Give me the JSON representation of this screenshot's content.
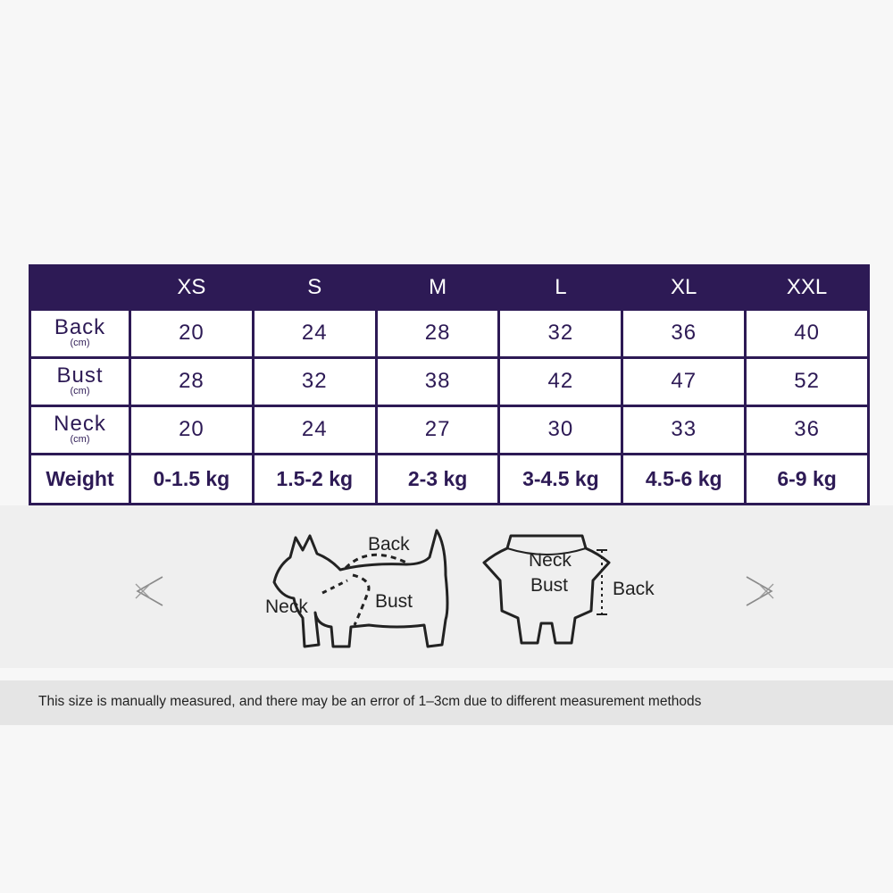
{
  "size_table": {
    "columns": [
      "XS",
      "S",
      "M",
      "L",
      "XL",
      "XXL"
    ],
    "rows": [
      {
        "label": "Back",
        "unit": "(cm)",
        "values": [
          "20",
          "24",
          "28",
          "32",
          "36",
          "40"
        ]
      },
      {
        "label": "Bust",
        "unit": "(cm)",
        "values": [
          "28",
          "32",
          "38",
          "42",
          "47",
          "52"
        ]
      },
      {
        "label": "Neck",
        "unit": "(cm)",
        "values": [
          "20",
          "24",
          "27",
          "30",
          "33",
          "36"
        ]
      },
      {
        "label": "Weight",
        "unit": "",
        "values": [
          "0-1.5 kg",
          "1.5-2 kg",
          "2-3 kg",
          "3-4.5 kg",
          "4.5-6 kg",
          "6-9 kg"
        ]
      }
    ]
  },
  "diagram": {
    "dog_labels": {
      "back": "Back",
      "neck": "Neck",
      "bust": "Bust"
    },
    "coat_labels": {
      "neck": "Neck",
      "bust": "Bust",
      "back": "Back"
    }
  },
  "note": "This size is manually measured, and there may be an error of 1–3cm due to different measurement methods",
  "colors": {
    "header_bg": "#2d1a55",
    "cell_text": "#2d1a55",
    "band_bg": "#efefef",
    "note_bg": "#e5e5e5"
  },
  "icons": [
    "left-arrow-icon",
    "dog-measurement-illustration",
    "coat-measurement-illustration",
    "right-arrow-icon"
  ]
}
